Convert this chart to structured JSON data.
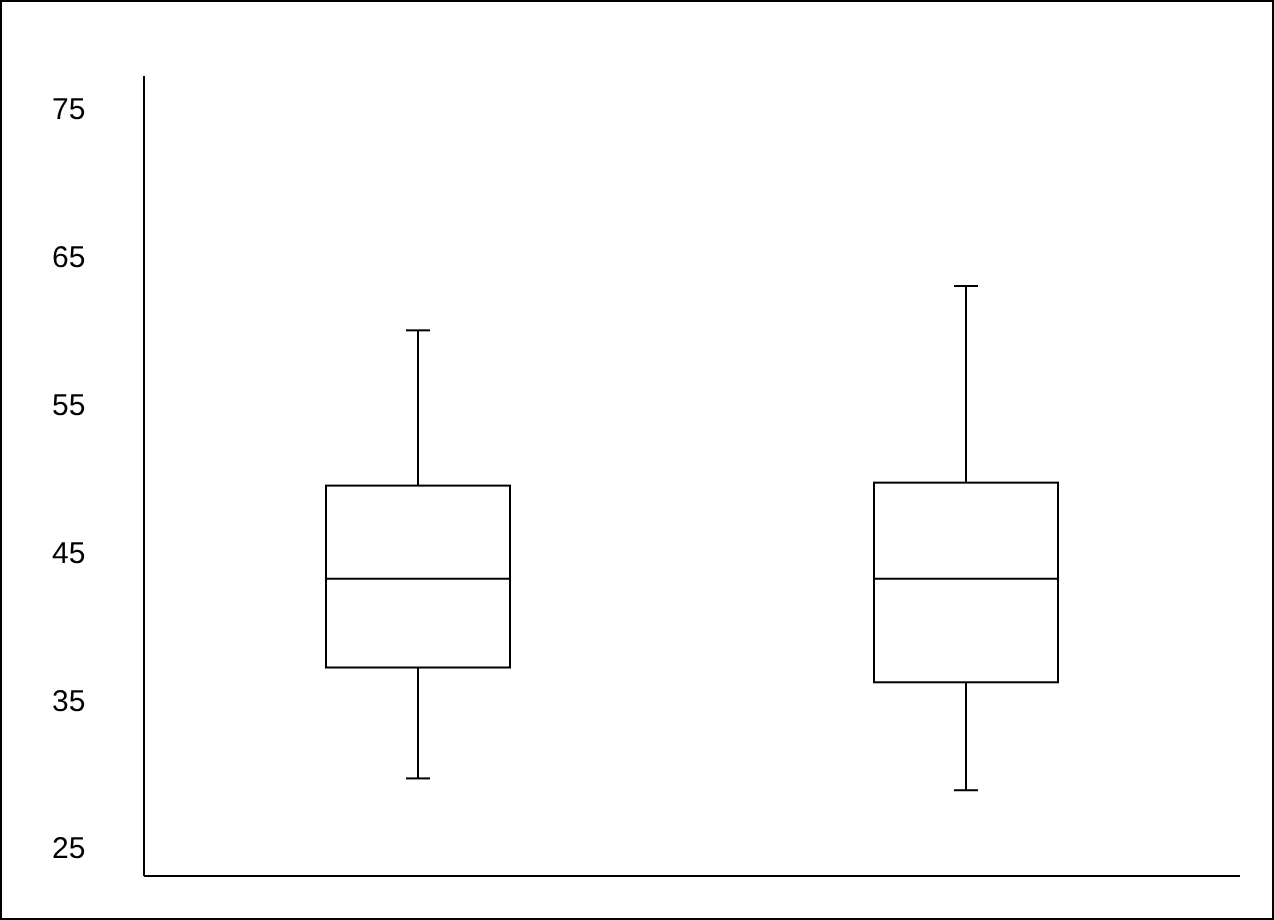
{
  "chart_data": {
    "type": "box",
    "categories": [
      null,
      null
    ],
    "boxes": [
      {
        "low": 29.7,
        "q1": 37.2,
        "median": 43.2,
        "q3": 49.5,
        "high": 60
      },
      {
        "low": 28.9,
        "q1": 36.2,
        "median": 43.2,
        "q3": 49.7,
        "high": 63
      }
    ],
    "ylim": [
      23.1,
      77.2
    ],
    "yticks": [
      25,
      35,
      45,
      55,
      65,
      75
    ],
    "grid": false
  }
}
